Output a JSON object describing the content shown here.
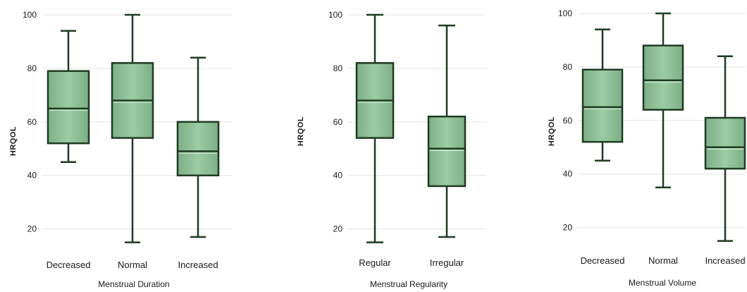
{
  "chart_data": [
    {
      "type": "boxplot",
      "ylabel": "HRQOL",
      "xlabel": "Menstrual Duration",
      "ylim": [
        15,
        100
      ],
      "yticks": [
        20,
        40,
        60,
        80,
        100
      ],
      "grid": true,
      "categories": [
        "Decreased",
        "Normal",
        "Increased"
      ],
      "boxes": [
        {
          "min": 45,
          "q1": 52,
          "median": 65,
          "q3": 79,
          "max": 94
        },
        {
          "min": 15,
          "q1": 54,
          "median": 68,
          "q3": 82,
          "max": 100
        },
        {
          "min": 17,
          "q1": 40,
          "median": 49,
          "q3": 60,
          "max": 84
        }
      ]
    },
    {
      "type": "boxplot",
      "ylabel": "HRQOL",
      "xlabel": "Menstrual Regularity",
      "ylim": [
        15,
        100
      ],
      "yticks": [
        20,
        40,
        60,
        80,
        100
      ],
      "grid": true,
      "categories": [
        "Regular",
        "Irregular"
      ],
      "boxes": [
        {
          "min": 15,
          "q1": 54,
          "median": 68,
          "q3": 82,
          "max": 100
        },
        {
          "min": 17,
          "q1": 36,
          "median": 50,
          "q3": 62,
          "max": 96
        }
      ]
    },
    {
      "type": "boxplot",
      "ylabel": "HRQOL",
      "xlabel": "Menstrual Volume",
      "ylim": [
        15,
        100
      ],
      "yticks": [
        20,
        40,
        60,
        80,
        100
      ],
      "grid": true,
      "categories": [
        "Decreased",
        "Normal",
        "Increased"
      ],
      "boxes": [
        {
          "min": 45,
          "q1": 52,
          "median": 65,
          "q3": 79,
          "max": 94
        },
        {
          "min": 35,
          "q1": 64,
          "median": 75,
          "q3": 88,
          "max": 100
        },
        {
          "min": 15,
          "q1": 42,
          "median": 50,
          "q3": 61,
          "max": 84
        }
      ]
    }
  ],
  "colors": {
    "box_fill": "#8fbf97",
    "box_stroke": "#1e3b22",
    "grid": "#e3e3e3"
  }
}
